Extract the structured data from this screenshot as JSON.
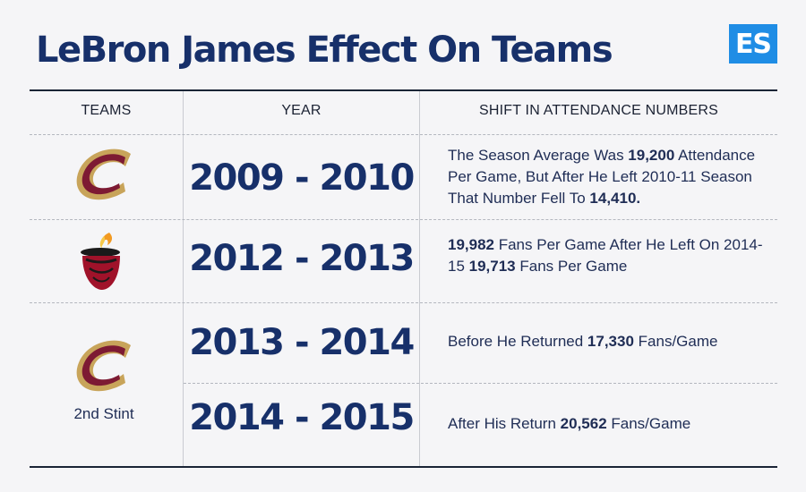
{
  "title": "LeBron James Effect On Teams",
  "brand_badge": "ES",
  "colors": {
    "title": "#17306a",
    "badge": "#1f8de5",
    "cavs_wine": "#7d1a33",
    "cavs_gold": "#c8a45a",
    "heat_red": "#a0122a"
  },
  "headers": {
    "teams": "TEAMS",
    "year": "YEAR",
    "shift": "SHIFT IN ATTENDANCE NUMBERS"
  },
  "rows": [
    {
      "team_icon": "cavaliers-c-logo-icon",
      "year": "2009 - 2010",
      "desc": [
        {
          "t": "The Season Average Was ",
          "b": false
        },
        {
          "t": "19,200",
          "b": true
        },
        {
          "t": " Attendance Per Game, But After He Left 2010-11 Season That Number Fell To ",
          "b": false
        },
        {
          "t": "14,410.",
          "b": true
        }
      ]
    },
    {
      "team_icon": "miami-heat-logo-icon",
      "year": "2012 - 2013",
      "desc": [
        {
          "t": "19,982",
          "b": true
        },
        {
          "t": " Fans Per Game After He Left On 2014-15 ",
          "b": false
        },
        {
          "t": "19,713",
          "b": true
        },
        {
          "t": " Fans Per Game",
          "b": false
        }
      ]
    },
    {
      "team_icon": "cavaliers-c-logo-icon",
      "team_label": "2nd Stint",
      "year": "2013 - 2014",
      "desc": [
        {
          "t": "Before He Returned ",
          "b": false
        },
        {
          "t": "17,330",
          "b": true
        },
        {
          "t": " Fans/Game",
          "b": false
        }
      ]
    },
    {
      "year": "2014 - 2015",
      "desc": [
        {
          "t": "After His Return ",
          "b": false
        },
        {
          "t": "20,562",
          "b": true
        },
        {
          "t": " Fans/Game",
          "b": false
        }
      ]
    }
  ]
}
